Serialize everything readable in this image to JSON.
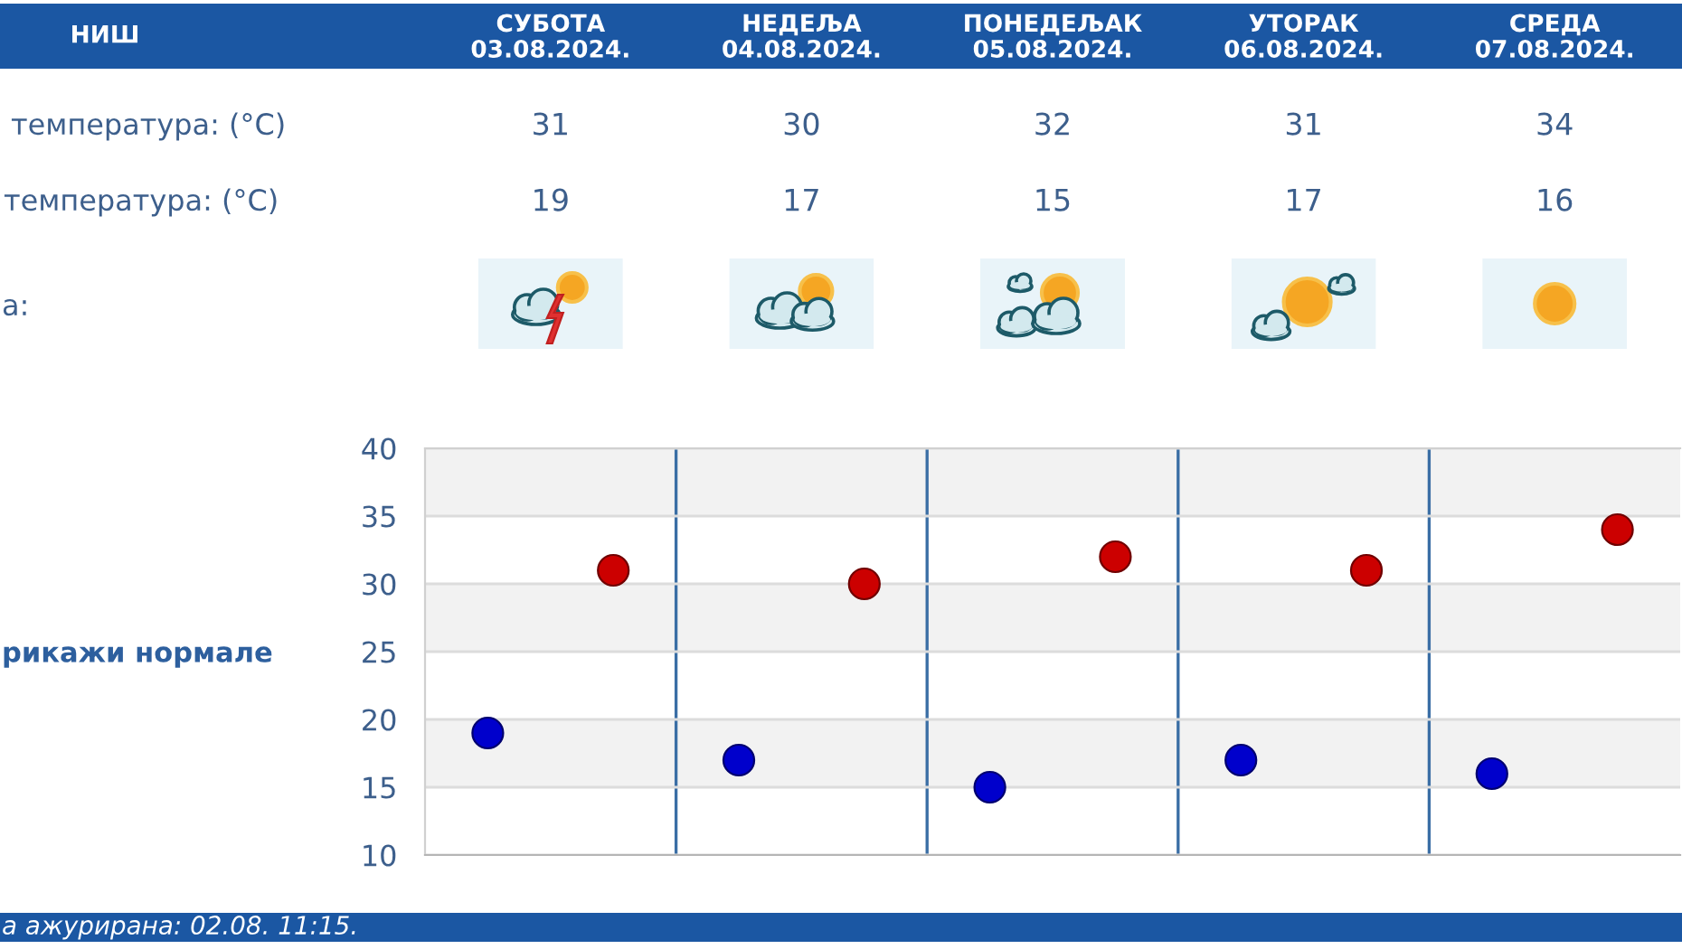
{
  "chart_data": {
    "type": "scatter",
    "title": "НИШ",
    "categories": [
      null,
      null,
      null,
      null,
      null
    ],
    "series": [
      {
        "color": "#cc0000",
        "values": [
          31,
          30,
          32,
          31,
          34
        ]
      },
      {
        "color": "#0000cc",
        "values": [
          19,
          17,
          15,
          17,
          16
        ]
      }
    ],
    "ylim": [
      10,
      40
    ],
    "yticks": [
      10,
      15,
      20,
      25,
      30,
      35,
      40
    ],
    "grid": true,
    "marker": "circle",
    "data_labels": true,
    "bands": [
      {
        "axis": "y",
        "from": 35,
        "to": 40,
        "color": "#f2f2f2"
      },
      {
        "axis": "y",
        "from": 25,
        "to": 30,
        "color": "#f2f2f2"
      },
      {
        "axis": "y",
        "from": 15,
        "to": 20,
        "color": "#f2f2f2"
      }
    ],
    "annotations": [
      "СУБОТА\n03.08.2024.",
      "НЕДЕЉА\n04.08.2024.",
      "ПОНЕДЕЉАК\n05.08.2024.",
      "УТОРАК\n06.08.2024.",
      "СРЕДА\n07.08.2024.",
      "температура: (°C)",
      "температура: (°C)",
      "а:",
      "рикажи нормале",
      "а ажурирана: 02.08. 11:15."
    ]
  }
}
